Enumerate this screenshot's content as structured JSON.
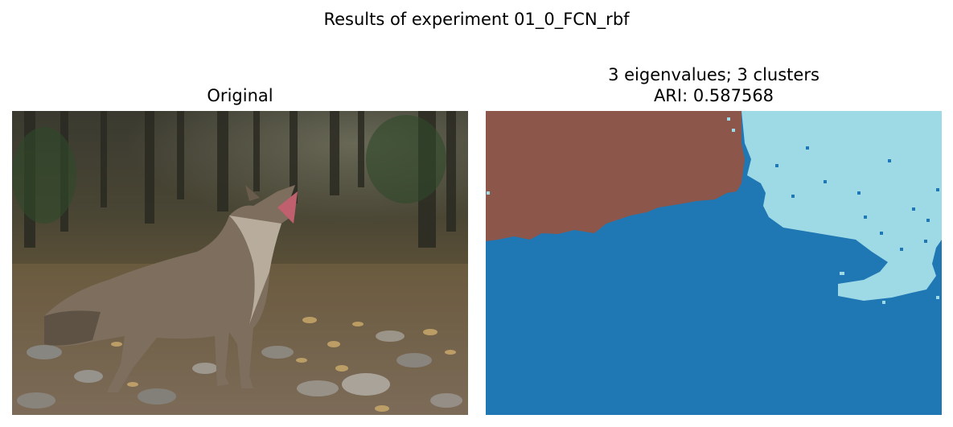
{
  "figure": {
    "suptitle": "Results of experiment 01_0_FCN_rbf"
  },
  "original": {
    "title": "Original"
  },
  "segmentation": {
    "title_line1": "3 eigenvalues; 3 clusters",
    "title_line2": "ARI: 0.587568",
    "colors": {
      "cluster_brown": "#8c564b",
      "cluster_blue": "#1f77b4",
      "cluster_light": "#9edae5"
    }
  }
}
